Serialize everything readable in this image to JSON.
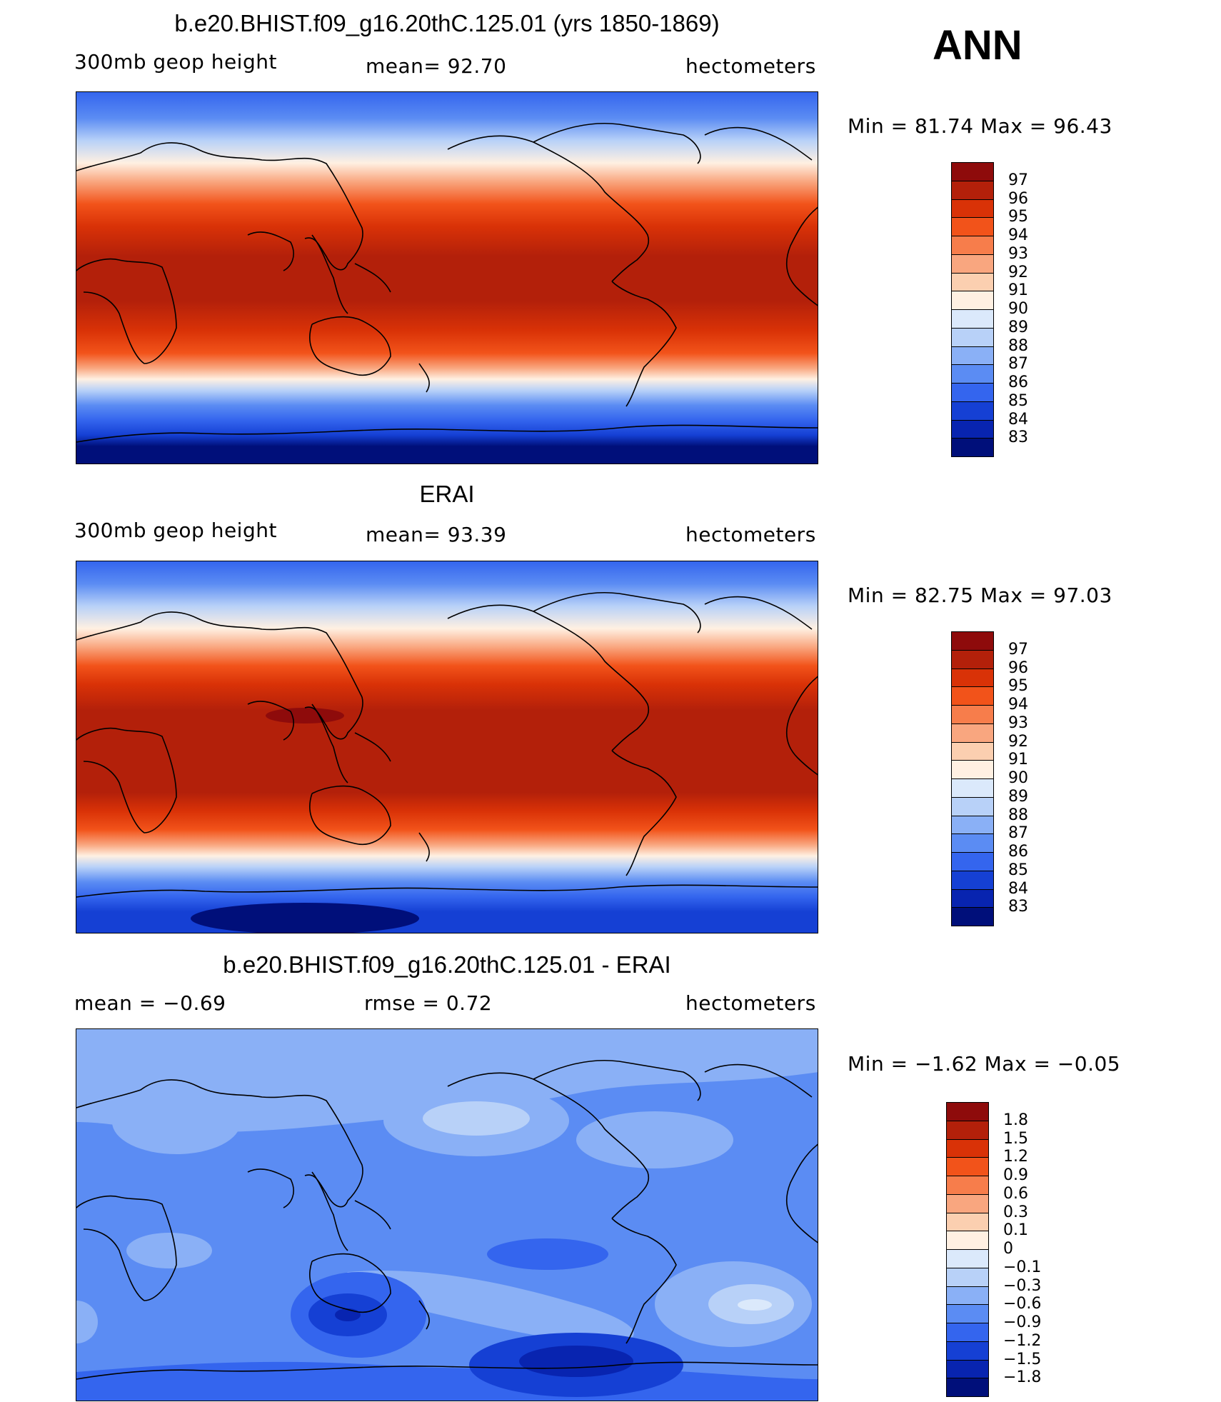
{
  "season": "ANN",
  "panels": [
    {
      "title": "b.e20.BHIST.f09_g16.20thC.125.01 (yrs 1850-1869)",
      "left_label": "300mb  geop  height",
      "mid_label": "mean=   92.70",
      "right_label": "hectometers",
      "minmax": "Min  =    81.74  Max  =    96.43",
      "colorbar_ticks": [
        "97",
        "96",
        "95",
        "94",
        "93",
        "92",
        "91",
        "90",
        "89",
        "88",
        "87",
        "86",
        "85",
        "84",
        "83"
      ],
      "colorbar_colors": [
        "#8e0b0b",
        "#b3200a",
        "#d93207",
        "#f2531a",
        "#f77d4b",
        "#f9a67f",
        "#fbcfb0",
        "#fff0e2",
        "#dbe9fb",
        "#b8d1f8",
        "#8ab0f6",
        "#5b8cf3",
        "#3465ee",
        "#1540d4",
        "#0824b0",
        "#000f7a"
      ]
    },
    {
      "title": "ERAI",
      "left_label": "300mb  geop  height",
      "mid_label": "mean=   93.39",
      "right_label": "hectometers",
      "minmax": "Min  =    82.75  Max  =    97.03",
      "colorbar_ticks": [
        "97",
        "96",
        "95",
        "94",
        "93",
        "92",
        "91",
        "90",
        "89",
        "88",
        "87",
        "86",
        "85",
        "84",
        "83"
      ],
      "colorbar_colors": [
        "#8e0b0b",
        "#b3200a",
        "#d93207",
        "#f2531a",
        "#f77d4b",
        "#f9a67f",
        "#fbcfb0",
        "#fff0e2",
        "#dbe9fb",
        "#b8d1f8",
        "#8ab0f6",
        "#5b8cf3",
        "#3465ee",
        "#1540d4",
        "#0824b0",
        "#000f7a"
      ]
    },
    {
      "title": "b.e20.BHIST.f09_g16.20thC.125.01 - ERAI",
      "left_label": "mean  =    −0.69",
      "mid_label": "rmse  =     0.72",
      "right_label": "hectometers",
      "minmax": "Min  =    −1.62  Max  =    −0.05",
      "colorbar_ticks": [
        "1.8",
        "1.5",
        "1.2",
        "0.9",
        "0.6",
        "0.3",
        "0.1",
        "0",
        "−0.1",
        "−0.3",
        "−0.6",
        "−0.9",
        "−1.2",
        "−1.5",
        "−1.8"
      ],
      "colorbar_colors": [
        "#8e0b0b",
        "#b3200a",
        "#d93207",
        "#f2531a",
        "#f77d4b",
        "#f9a67f",
        "#fbcfb0",
        "#fff0e2",
        "#dbe9fb",
        "#b8d1f8",
        "#8ab0f6",
        "#5b8cf3",
        "#3465ee",
        "#1540d4",
        "#0824b0",
        "#000f7a"
      ]
    }
  ]
}
